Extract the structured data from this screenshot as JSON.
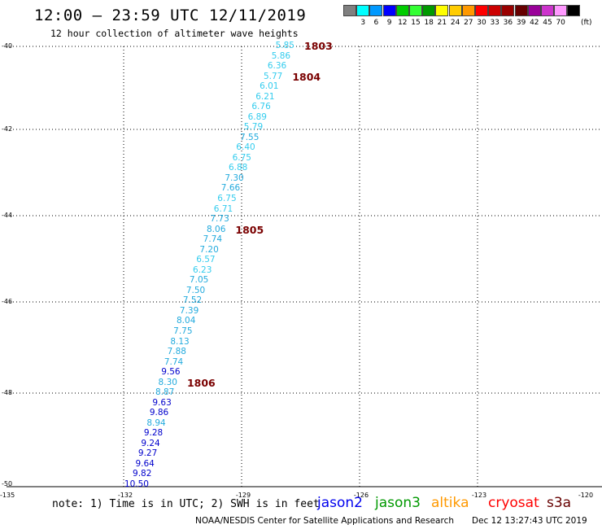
{
  "header": {
    "title": "12:00 – 23:59 UTC 12/11/2019",
    "subtitle": "12 hour collection of altimeter wave heights"
  },
  "legend": {
    "colors": [
      "#808080",
      "#00ffff",
      "#0099ff",
      "#0000ff",
      "#00cc00",
      "#33ff33",
      "#009900",
      "#ffff00",
      "#ffcc00",
      "#ff9900",
      "#ff0000",
      "#cc0000",
      "#990000",
      "#660000",
      "#990099",
      "#cc33cc",
      "#ff99ff",
      "#000000"
    ],
    "labels": [
      "3",
      "6",
      "9",
      "12",
      "15",
      "18",
      "21",
      "24",
      "27",
      "30",
      "33",
      "36",
      "39",
      "42",
      "45",
      "70"
    ],
    "unit": "(ft)"
  },
  "axes": {
    "lat_labels": [
      "-40",
      "-42",
      "-44",
      "-46",
      "-48",
      "-50"
    ],
    "lon_labels": [
      "-135",
      "-132",
      "-129",
      "-126",
      "-123",
      "-120"
    ]
  },
  "observations": [
    {
      "v": "5.85",
      "c": "#33ccee"
    },
    {
      "v": "5.86",
      "c": "#33ccee"
    },
    {
      "v": "6.36",
      "c": "#33ccee"
    },
    {
      "v": "5.77",
      "c": "#33ccee"
    },
    {
      "v": "6.01",
      "c": "#33ccee"
    },
    {
      "v": "6.21",
      "c": "#33ccee"
    },
    {
      "v": "6.76",
      "c": "#33ccee"
    },
    {
      "v": "6.89",
      "c": "#33ccee"
    },
    {
      "v": "5.79",
      "c": "#33ccee"
    },
    {
      "v": "7.55",
      "c": "#22aadd"
    },
    {
      "v": "6.40",
      "c": "#33ccee"
    },
    {
      "v": "6.75",
      "c": "#33ccee"
    },
    {
      "v": "6.88",
      "c": "#33ccee"
    },
    {
      "v": "7.30",
      "c": "#22aadd"
    },
    {
      "v": "7.66",
      "c": "#22aadd"
    },
    {
      "v": "6.75",
      "c": "#33ccee"
    },
    {
      "v": "6.71",
      "c": "#33ccee"
    },
    {
      "v": "7.73",
      "c": "#22aadd"
    },
    {
      "v": "8.06",
      "c": "#22aadd"
    },
    {
      "v": "7.74",
      "c": "#22aadd"
    },
    {
      "v": "7.20",
      "c": "#22aadd"
    },
    {
      "v": "6.57",
      "c": "#33ccee"
    },
    {
      "v": "6.23",
      "c": "#33ccee"
    },
    {
      "v": "7.05",
      "c": "#22aadd"
    },
    {
      "v": "7.50",
      "c": "#22aadd"
    },
    {
      "v": "7.52",
      "c": "#22aadd"
    },
    {
      "v": "7.39",
      "c": "#22aadd"
    },
    {
      "v": "8.04",
      "c": "#22aadd"
    },
    {
      "v": "7.75",
      "c": "#22aadd"
    },
    {
      "v": "8.13",
      "c": "#22aadd"
    },
    {
      "v": "7.88",
      "c": "#22aadd"
    },
    {
      "v": "7.74",
      "c": "#22aadd"
    },
    {
      "v": "9.56",
      "c": "#0000cc"
    },
    {
      "v": "8.30",
      "c": "#22aadd"
    },
    {
      "v": "8.87",
      "c": "#22aadd"
    },
    {
      "v": "9.63",
      "c": "#0000cc"
    },
    {
      "v": "9.86",
      "c": "#0000cc"
    },
    {
      "v": "8.94",
      "c": "#22aadd"
    },
    {
      "v": "9.28",
      "c": "#0000cc"
    },
    {
      "v": "9.24",
      "c": "#0000cc"
    },
    {
      "v": "9.27",
      "c": "#0000cc"
    },
    {
      "v": "9.64",
      "c": "#0000cc"
    },
    {
      "v": "9.82",
      "c": "#0000cc"
    },
    {
      "v": "10.50",
      "c": "#0000cc"
    }
  ],
  "orbits": [
    {
      "id": "1803",
      "after_obs": 0
    },
    {
      "id": "1804",
      "after_obs": 3
    },
    {
      "id": "1805",
      "after_obs": 18
    },
    {
      "id": "1806",
      "after_obs": 33
    }
  ],
  "footer": {
    "note": "note: 1) Time is in UTC; 2) SWH is in feet",
    "satellites": [
      {
        "name": "jason2",
        "color": "#0000ee"
      },
      {
        "name": "jason3",
        "color": "#009900"
      },
      {
        "name": "altika",
        "color": "#ff9900"
      },
      {
        "name": "cryosat",
        "color": "#ff0000"
      },
      {
        "name": "s3a",
        "color": "#660000"
      }
    ],
    "credit": "NOAA/NESDIS Center for Satellite Applications and Research",
    "timestamp": "Dec 12 13:27:43 UTC 2019"
  }
}
